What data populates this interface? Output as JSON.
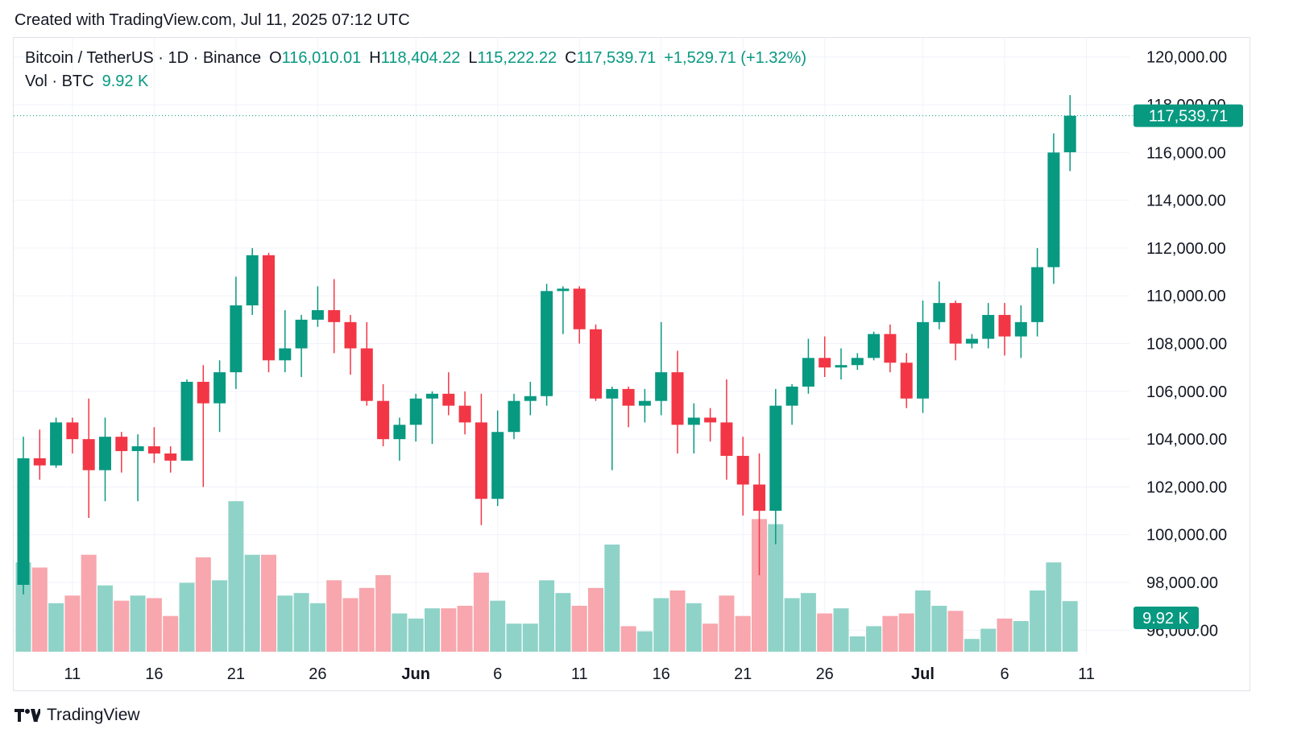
{
  "header": {
    "created": "Created with TradingView.com, Jul 11, 2025 07:12 UTC"
  },
  "legend": {
    "symbol": "Bitcoin / TetherUS · 1D · Binance",
    "open_label": "O",
    "open": "116,010.01",
    "high_label": "H",
    "high": "118,404.22",
    "low_label": "L",
    "low": "115,222.22",
    "close_label": "C",
    "close": "117,539.71",
    "change": "+1,529.71 (+1.32%)",
    "vol_label": "Vol · BTC",
    "vol": "9.92 K"
  },
  "footer": {
    "brand": "TradingView",
    "logo_icon": "tradingview-logo-icon"
  },
  "colors": {
    "up": "#089981",
    "down": "#f23645",
    "vol_up": "#8fd3c8",
    "vol_down": "#f7a7ad",
    "grid": "#f0f3fa"
  },
  "chart_data": {
    "type": "candlestick",
    "y_axis": {
      "ticks": [
        "120,000.00",
        "118,000.00",
        "116,000.00",
        "114,000.00",
        "112,000.00",
        "110,000.00",
        "108,000.00",
        "106,000.00",
        "104,000.00",
        "102,000.00",
        "100,000.00",
        "98,000.00",
        "96,000.00"
      ],
      "ylim": [
        95000,
        120800
      ]
    },
    "x_axis": {
      "ticks": [
        {
          "label": "11",
          "index": 3,
          "bold": false
        },
        {
          "label": "16",
          "index": 8,
          "bold": false
        },
        {
          "label": "21",
          "index": 13,
          "bold": false
        },
        {
          "label": "26",
          "index": 18,
          "bold": false
        },
        {
          "label": "Jun",
          "index": 24,
          "bold": true
        },
        {
          "label": "6",
          "index": 29,
          "bold": false
        },
        {
          "label": "11",
          "index": 34,
          "bold": false
        },
        {
          "label": "16",
          "index": 39,
          "bold": false
        },
        {
          "label": "21",
          "index": 44,
          "bold": false
        },
        {
          "label": "26",
          "index": 49,
          "bold": false
        },
        {
          "label": "Jul",
          "index": 55,
          "bold": true
        },
        {
          "label": "6",
          "index": 60,
          "bold": false
        },
        {
          "label": "11",
          "index": 65,
          "bold": false
        }
      ]
    },
    "last_price": {
      "value": 117539.71,
      "label": "117,539.71"
    },
    "last_volume_label": "9.92 K",
    "volume_max": 33000,
    "candles": [
      {
        "date": "2025-05-08",
        "o": 97900,
        "h": 104100,
        "l": 97500,
        "c": 103200,
        "v": 17500
      },
      {
        "date": "2025-05-09",
        "o": 103200,
        "h": 104400,
        "l": 102300,
        "c": 102900,
        "v": 16500
      },
      {
        "date": "2025-05-10",
        "o": 102900,
        "h": 104900,
        "l": 102800,
        "c": 104700,
        "v": 9500
      },
      {
        "date": "2025-05-11",
        "o": 104700,
        "h": 104900,
        "l": 103400,
        "c": 104000,
        "v": 11000
      },
      {
        "date": "2025-05-12",
        "o": 104000,
        "h": 105700,
        "l": 100700,
        "c": 102700,
        "v": 19000
      },
      {
        "date": "2025-05-13",
        "o": 102700,
        "h": 104900,
        "l": 101400,
        "c": 104100,
        "v": 13000
      },
      {
        "date": "2025-05-14",
        "o": 104100,
        "h": 104300,
        "l": 102600,
        "c": 103500,
        "v": 10000
      },
      {
        "date": "2025-05-15",
        "o": 103500,
        "h": 104200,
        "l": 101400,
        "c": 103700,
        "v": 11000
      },
      {
        "date": "2025-05-16",
        "o": 103700,
        "h": 104500,
        "l": 103000,
        "c": 103400,
        "v": 10500
      },
      {
        "date": "2025-05-17",
        "o": 103400,
        "h": 103700,
        "l": 102600,
        "c": 103100,
        "v": 7000
      },
      {
        "date": "2025-05-18",
        "o": 103100,
        "h": 106500,
        "l": 103100,
        "c": 106400,
        "v": 13500
      },
      {
        "date": "2025-05-19",
        "o": 106400,
        "h": 107100,
        "l": 102000,
        "c": 105500,
        "v": 18500
      },
      {
        "date": "2025-05-20",
        "o": 105500,
        "h": 107300,
        "l": 104300,
        "c": 106800,
        "v": 14000
      },
      {
        "date": "2025-05-21",
        "o": 106800,
        "h": 110800,
        "l": 106100,
        "c": 109600,
        "v": 29500
      },
      {
        "date": "2025-05-22",
        "o": 109600,
        "h": 112000,
        "l": 109200,
        "c": 111700,
        "v": 19000
      },
      {
        "date": "2025-05-23",
        "o": 111700,
        "h": 111800,
        "l": 106800,
        "c": 107300,
        "v": 19000
      },
      {
        "date": "2025-05-24",
        "o": 107300,
        "h": 109400,
        "l": 106800,
        "c": 107800,
        "v": 11000
      },
      {
        "date": "2025-05-25",
        "o": 107800,
        "h": 109200,
        "l": 106600,
        "c": 109000,
        "v": 11500
      },
      {
        "date": "2025-05-26",
        "o": 109000,
        "h": 110400,
        "l": 108700,
        "c": 109400,
        "v": 9500
      },
      {
        "date": "2025-05-27",
        "o": 109400,
        "h": 110700,
        "l": 107600,
        "c": 108900,
        "v": 14000
      },
      {
        "date": "2025-05-28",
        "o": 108900,
        "h": 109200,
        "l": 106700,
        "c": 107800,
        "v": 10500
      },
      {
        "date": "2025-05-29",
        "o": 107800,
        "h": 108900,
        "l": 105400,
        "c": 105600,
        "v": 12500
      },
      {
        "date": "2025-05-30",
        "o": 105600,
        "h": 106300,
        "l": 103700,
        "c": 104000,
        "v": 15000
      },
      {
        "date": "2025-05-31",
        "o": 104000,
        "h": 104900,
        "l": 103100,
        "c": 104600,
        "v": 7500
      },
      {
        "date": "2025-06-01",
        "o": 104600,
        "h": 105900,
        "l": 103900,
        "c": 105700,
        "v": 6500
      },
      {
        "date": "2025-06-02",
        "o": 105700,
        "h": 106000,
        "l": 103800,
        "c": 105900,
        "v": 8500
      },
      {
        "date": "2025-06-03",
        "o": 105900,
        "h": 106800,
        "l": 105000,
        "c": 105400,
        "v": 8500
      },
      {
        "date": "2025-06-04",
        "o": 105400,
        "h": 106000,
        "l": 104200,
        "c": 104700,
        "v": 9000
      },
      {
        "date": "2025-06-05",
        "o": 104700,
        "h": 105900,
        "l": 100400,
        "c": 101500,
        "v": 15500
      },
      {
        "date": "2025-06-06",
        "o": 101500,
        "h": 105200,
        "l": 101200,
        "c": 104300,
        "v": 10000
      },
      {
        "date": "2025-06-07",
        "o": 104300,
        "h": 105900,
        "l": 104000,
        "c": 105600,
        "v": 5500
      },
      {
        "date": "2025-06-08",
        "o": 105600,
        "h": 106400,
        "l": 105000,
        "c": 105800,
        "v": 5500
      },
      {
        "date": "2025-06-09",
        "o": 105800,
        "h": 110500,
        "l": 105400,
        "c": 110200,
        "v": 14000
      },
      {
        "date": "2025-06-10",
        "o": 110200,
        "h": 110400,
        "l": 108400,
        "c": 110300,
        "v": 11500
      },
      {
        "date": "2025-06-11",
        "o": 110300,
        "h": 110400,
        "l": 108000,
        "c": 108600,
        "v": 9000
      },
      {
        "date": "2025-06-12",
        "o": 108600,
        "h": 108800,
        "l": 105600,
        "c": 105700,
        "v": 12500
      },
      {
        "date": "2025-06-13",
        "o": 105700,
        "h": 106200,
        "l": 102700,
        "c": 106100,
        "v": 21000
      },
      {
        "date": "2025-06-14",
        "o": 106100,
        "h": 106200,
        "l": 104500,
        "c": 105400,
        "v": 5000
      },
      {
        "date": "2025-06-15",
        "o": 105400,
        "h": 106100,
        "l": 104700,
        "c": 105600,
        "v": 4000
      },
      {
        "date": "2025-06-16",
        "o": 105600,
        "h": 108900,
        "l": 105000,
        "c": 106800,
        "v": 10500
      },
      {
        "date": "2025-06-17",
        "o": 106800,
        "h": 107700,
        "l": 103400,
        "c": 104600,
        "v": 12000
      },
      {
        "date": "2025-06-18",
        "o": 104600,
        "h": 105500,
        "l": 103400,
        "c": 104900,
        "v": 9500
      },
      {
        "date": "2025-06-19",
        "o": 104900,
        "h": 105300,
        "l": 103900,
        "c": 104700,
        "v": 5500
      },
      {
        "date": "2025-06-20",
        "o": 104700,
        "h": 106500,
        "l": 102300,
        "c": 103300,
        "v": 11000
      },
      {
        "date": "2025-06-21",
        "o": 103300,
        "h": 104100,
        "l": 100800,
        "c": 102100,
        "v": 7000
      },
      {
        "date": "2025-06-22",
        "o": 102100,
        "h": 103400,
        "l": 98300,
        "c": 101000,
        "v": 26000
      },
      {
        "date": "2025-06-23",
        "o": 101000,
        "h": 106100,
        "l": 99600,
        "c": 105400,
        "v": 25000
      },
      {
        "date": "2025-06-24",
        "o": 105400,
        "h": 106300,
        "l": 104600,
        "c": 106200,
        "v": 10500
      },
      {
        "date": "2025-06-25",
        "o": 106200,
        "h": 108200,
        "l": 105900,
        "c": 107400,
        "v": 11500
      },
      {
        "date": "2025-06-26",
        "o": 107400,
        "h": 108300,
        "l": 106600,
        "c": 107000,
        "v": 7500
      },
      {
        "date": "2025-06-27",
        "o": 107000,
        "h": 107800,
        "l": 106500,
        "c": 107100,
        "v": 8500
      },
      {
        "date": "2025-06-28",
        "o": 107100,
        "h": 107600,
        "l": 106900,
        "c": 107400,
        "v": 3000
      },
      {
        "date": "2025-06-29",
        "o": 107400,
        "h": 108500,
        "l": 107300,
        "c": 108400,
        "v": 5000
      },
      {
        "date": "2025-06-30",
        "o": 108400,
        "h": 108800,
        "l": 106800,
        "c": 107200,
        "v": 7000
      },
      {
        "date": "2025-07-01",
        "o": 107200,
        "h": 107600,
        "l": 105300,
        "c": 105700,
        "v": 7500
      },
      {
        "date": "2025-07-02",
        "o": 105700,
        "h": 109800,
        "l": 105100,
        "c": 108900,
        "v": 12000
      },
      {
        "date": "2025-07-03",
        "o": 108900,
        "h": 110600,
        "l": 108600,
        "c": 109700,
        "v": 9000
      },
      {
        "date": "2025-07-04",
        "o": 109700,
        "h": 109800,
        "l": 107300,
        "c": 108000,
        "v": 8000
      },
      {
        "date": "2025-07-05",
        "o": 108000,
        "h": 108400,
        "l": 107800,
        "c": 108200,
        "v": 2500
      },
      {
        "date": "2025-07-06",
        "o": 108200,
        "h": 109700,
        "l": 107800,
        "c": 109200,
        "v": 4500
      },
      {
        "date": "2025-07-07",
        "o": 109200,
        "h": 109700,
        "l": 107500,
        "c": 108300,
        "v": 6500
      },
      {
        "date": "2025-07-08",
        "o": 108300,
        "h": 109600,
        "l": 107400,
        "c": 108900,
        "v": 6000
      },
      {
        "date": "2025-07-09",
        "o": 108900,
        "h": 112000,
        "l": 108300,
        "c": 111200,
        "v": 12000
      },
      {
        "date": "2025-07-10",
        "o": 111200,
        "h": 116800,
        "l": 110500,
        "c": 116000,
        "v": 17500
      },
      {
        "date": "2025-07-11",
        "o": 116010.01,
        "h": 118404.22,
        "l": 115222.22,
        "c": 117539.71,
        "v": 9920
      }
    ]
  }
}
